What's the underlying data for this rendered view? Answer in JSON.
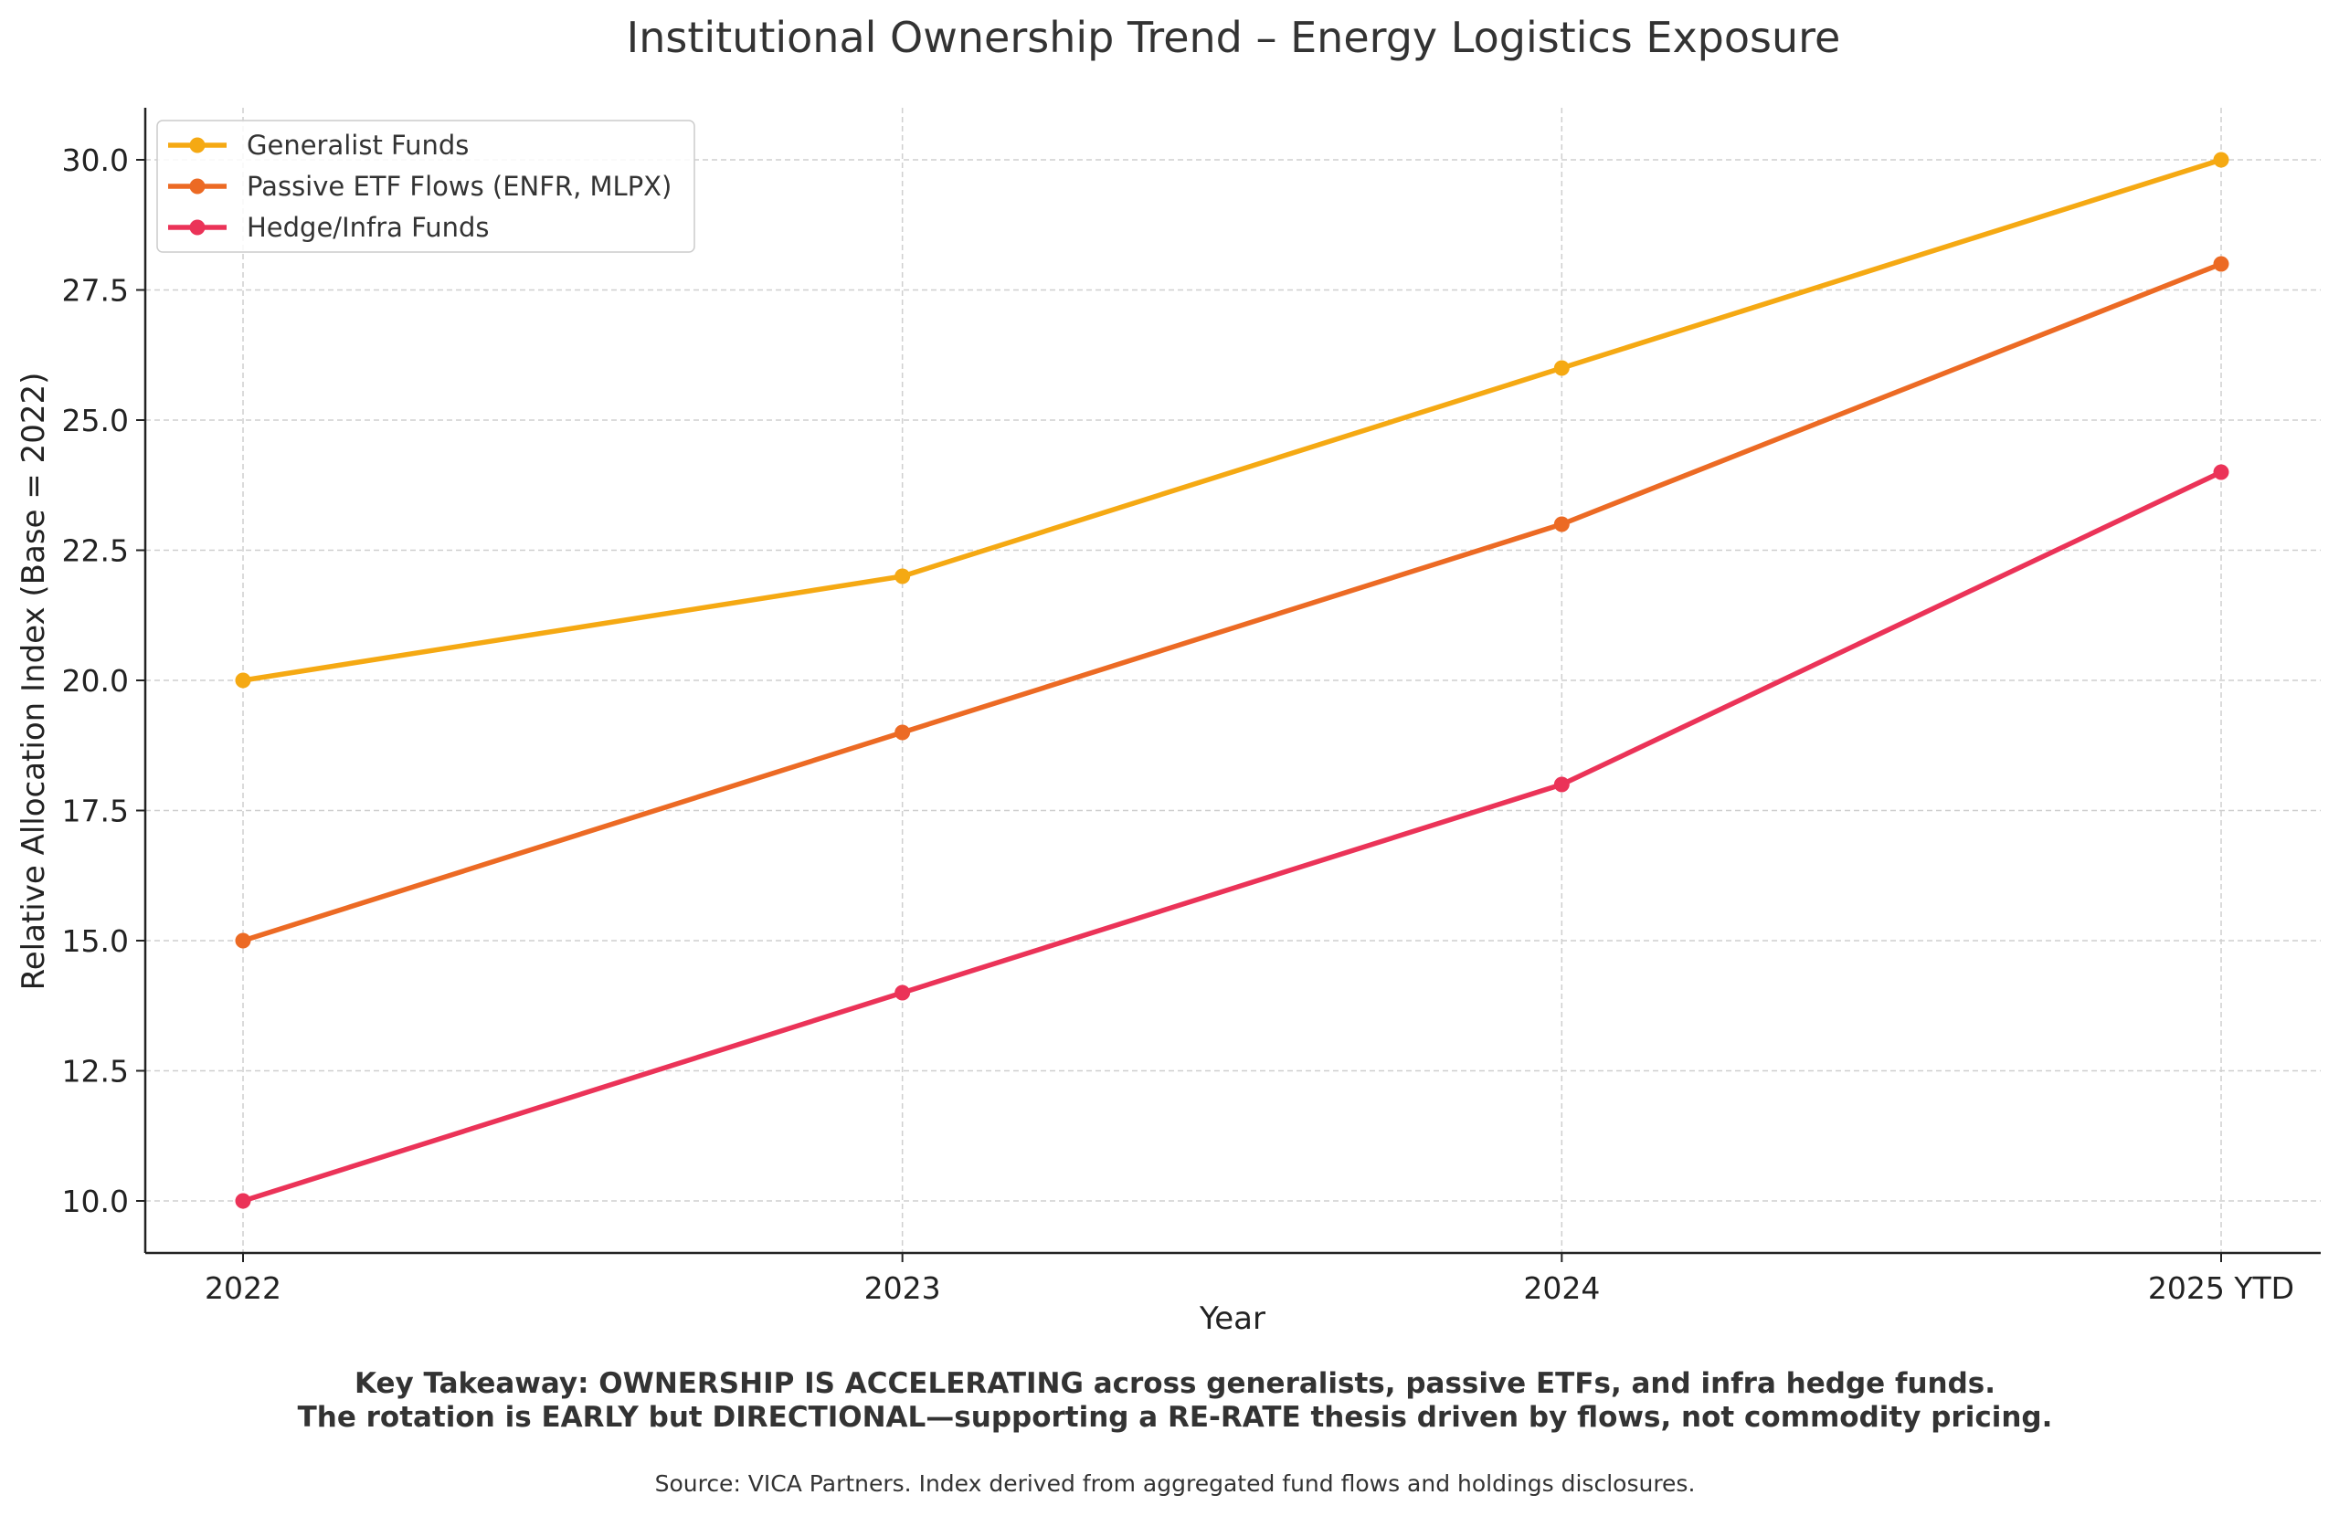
{
  "chart_data": {
    "type": "line",
    "title": "Institutional Ownership Trend – Energy Logistics Exposure",
    "xlabel": "Year",
    "ylabel": "Relative Allocation Index (Base = 2022)",
    "categories": [
      "2022",
      "2023",
      "2024",
      "2025 YTD"
    ],
    "ylim": [
      9.0,
      31.0
    ],
    "yticks": [
      "10.0",
      "12.5",
      "15.0",
      "17.5",
      "20.0",
      "22.5",
      "25.0",
      "27.5",
      "30.0"
    ],
    "grid": true,
    "legend_position": "top-left",
    "series": [
      {
        "name": "Generalist Funds",
        "color": "#F5A913",
        "values": [
          20,
          22,
          26,
          30
        ]
      },
      {
        "name": "Passive ETF Flows (ENFR, MLPX)",
        "color": "#EC6A24",
        "values": [
          15,
          19,
          23,
          28
        ]
      },
      {
        "name": "Hedge/Infra Funds",
        "color": "#EB3358",
        "values": [
          10,
          14,
          18,
          24
        ]
      }
    ]
  },
  "footer": {
    "takeaway_line1": "Key Takeaway: OWNERSHIP IS ACCELERATING across generalists, passive ETFs, and infra hedge funds.",
    "takeaway_line2": "The rotation is EARLY but DIRECTIONAL—supporting a RE-RATE thesis driven by flows, not commodity pricing.",
    "source": "Source: VICA Partners. Index derived from aggregated fund flows and holdings disclosures."
  }
}
